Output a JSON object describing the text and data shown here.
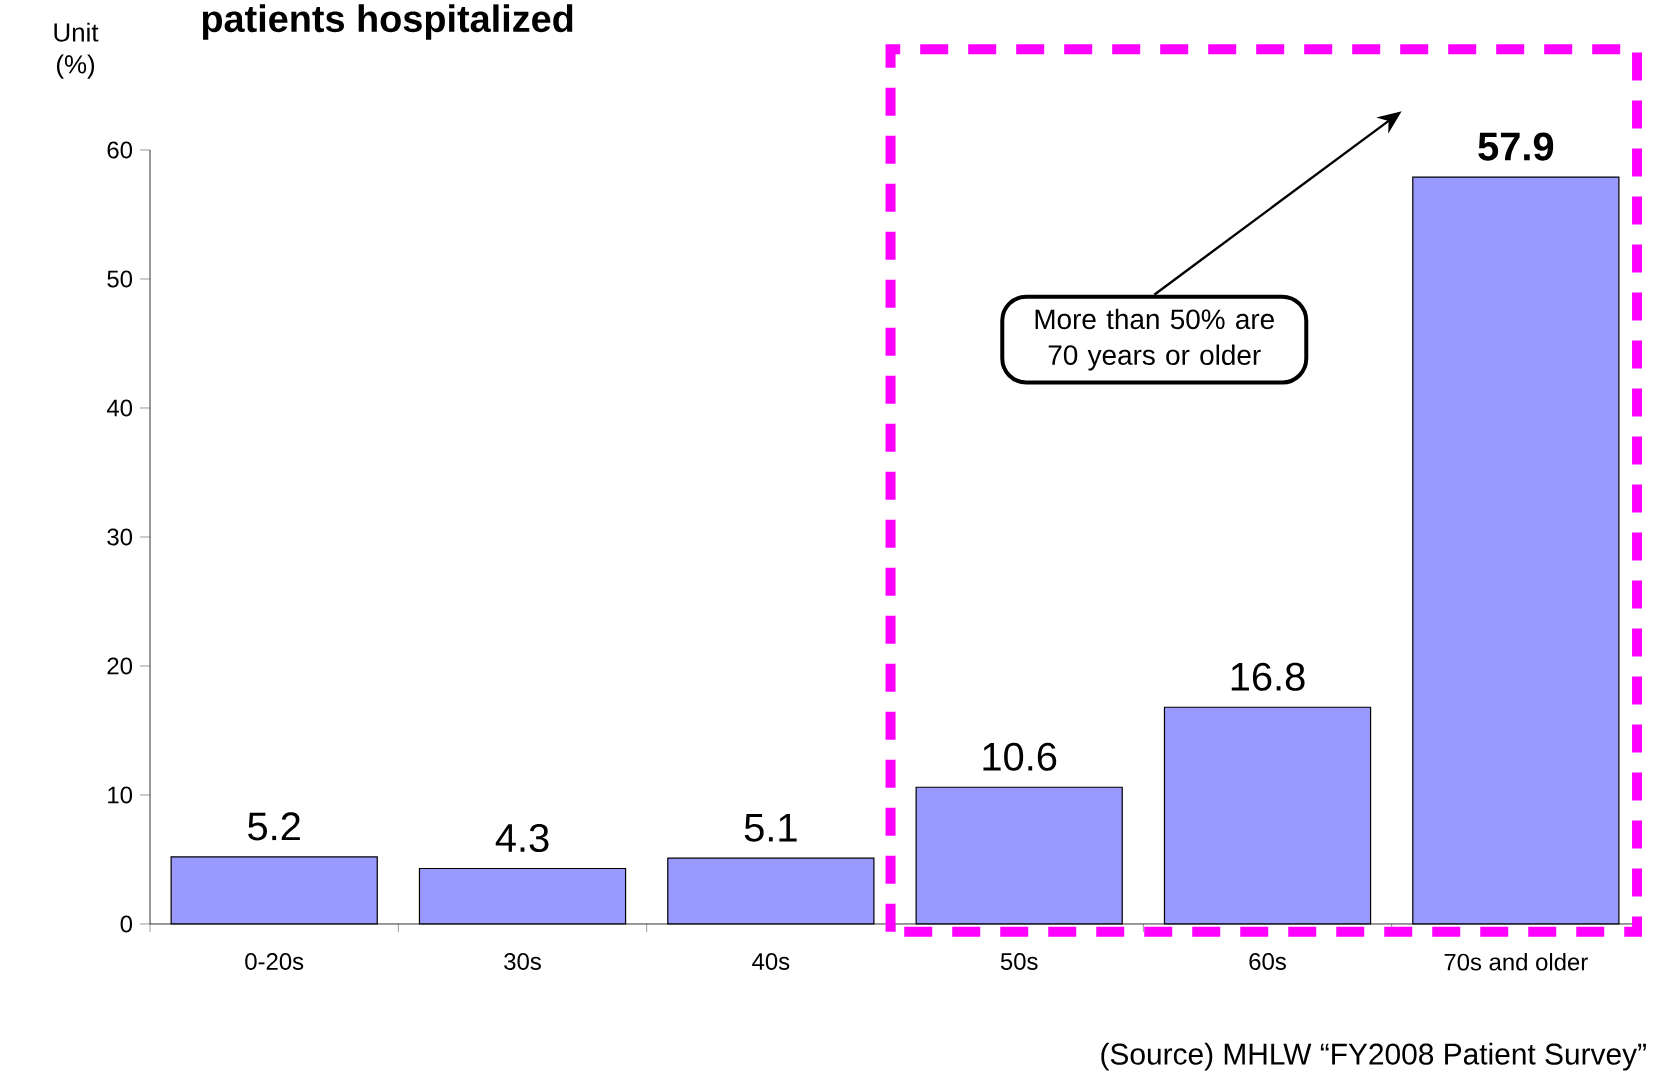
{
  "chart_data": {
    "type": "bar",
    "title": "patients hospitalized",
    "categories": [
      "0-20s",
      "30s",
      "40s",
      "50s",
      "60s",
      "70s and older"
    ],
    "values": [
      5.2,
      4.3,
      5.1,
      10.6,
      16.8,
      57.9
    ],
    "color": "#9999ff",
    "ylim": [
      0,
      60
    ],
    "yticks": [
      0,
      10,
      20,
      30,
      40,
      50,
      60
    ],
    "data_labels": true,
    "grid": false,
    "annotations": [
      "Unit (%)",
      "More than 50% are 70 years or older",
      "(Source) MHLW “FY2008 Patient Survey”"
    ]
  }
}
